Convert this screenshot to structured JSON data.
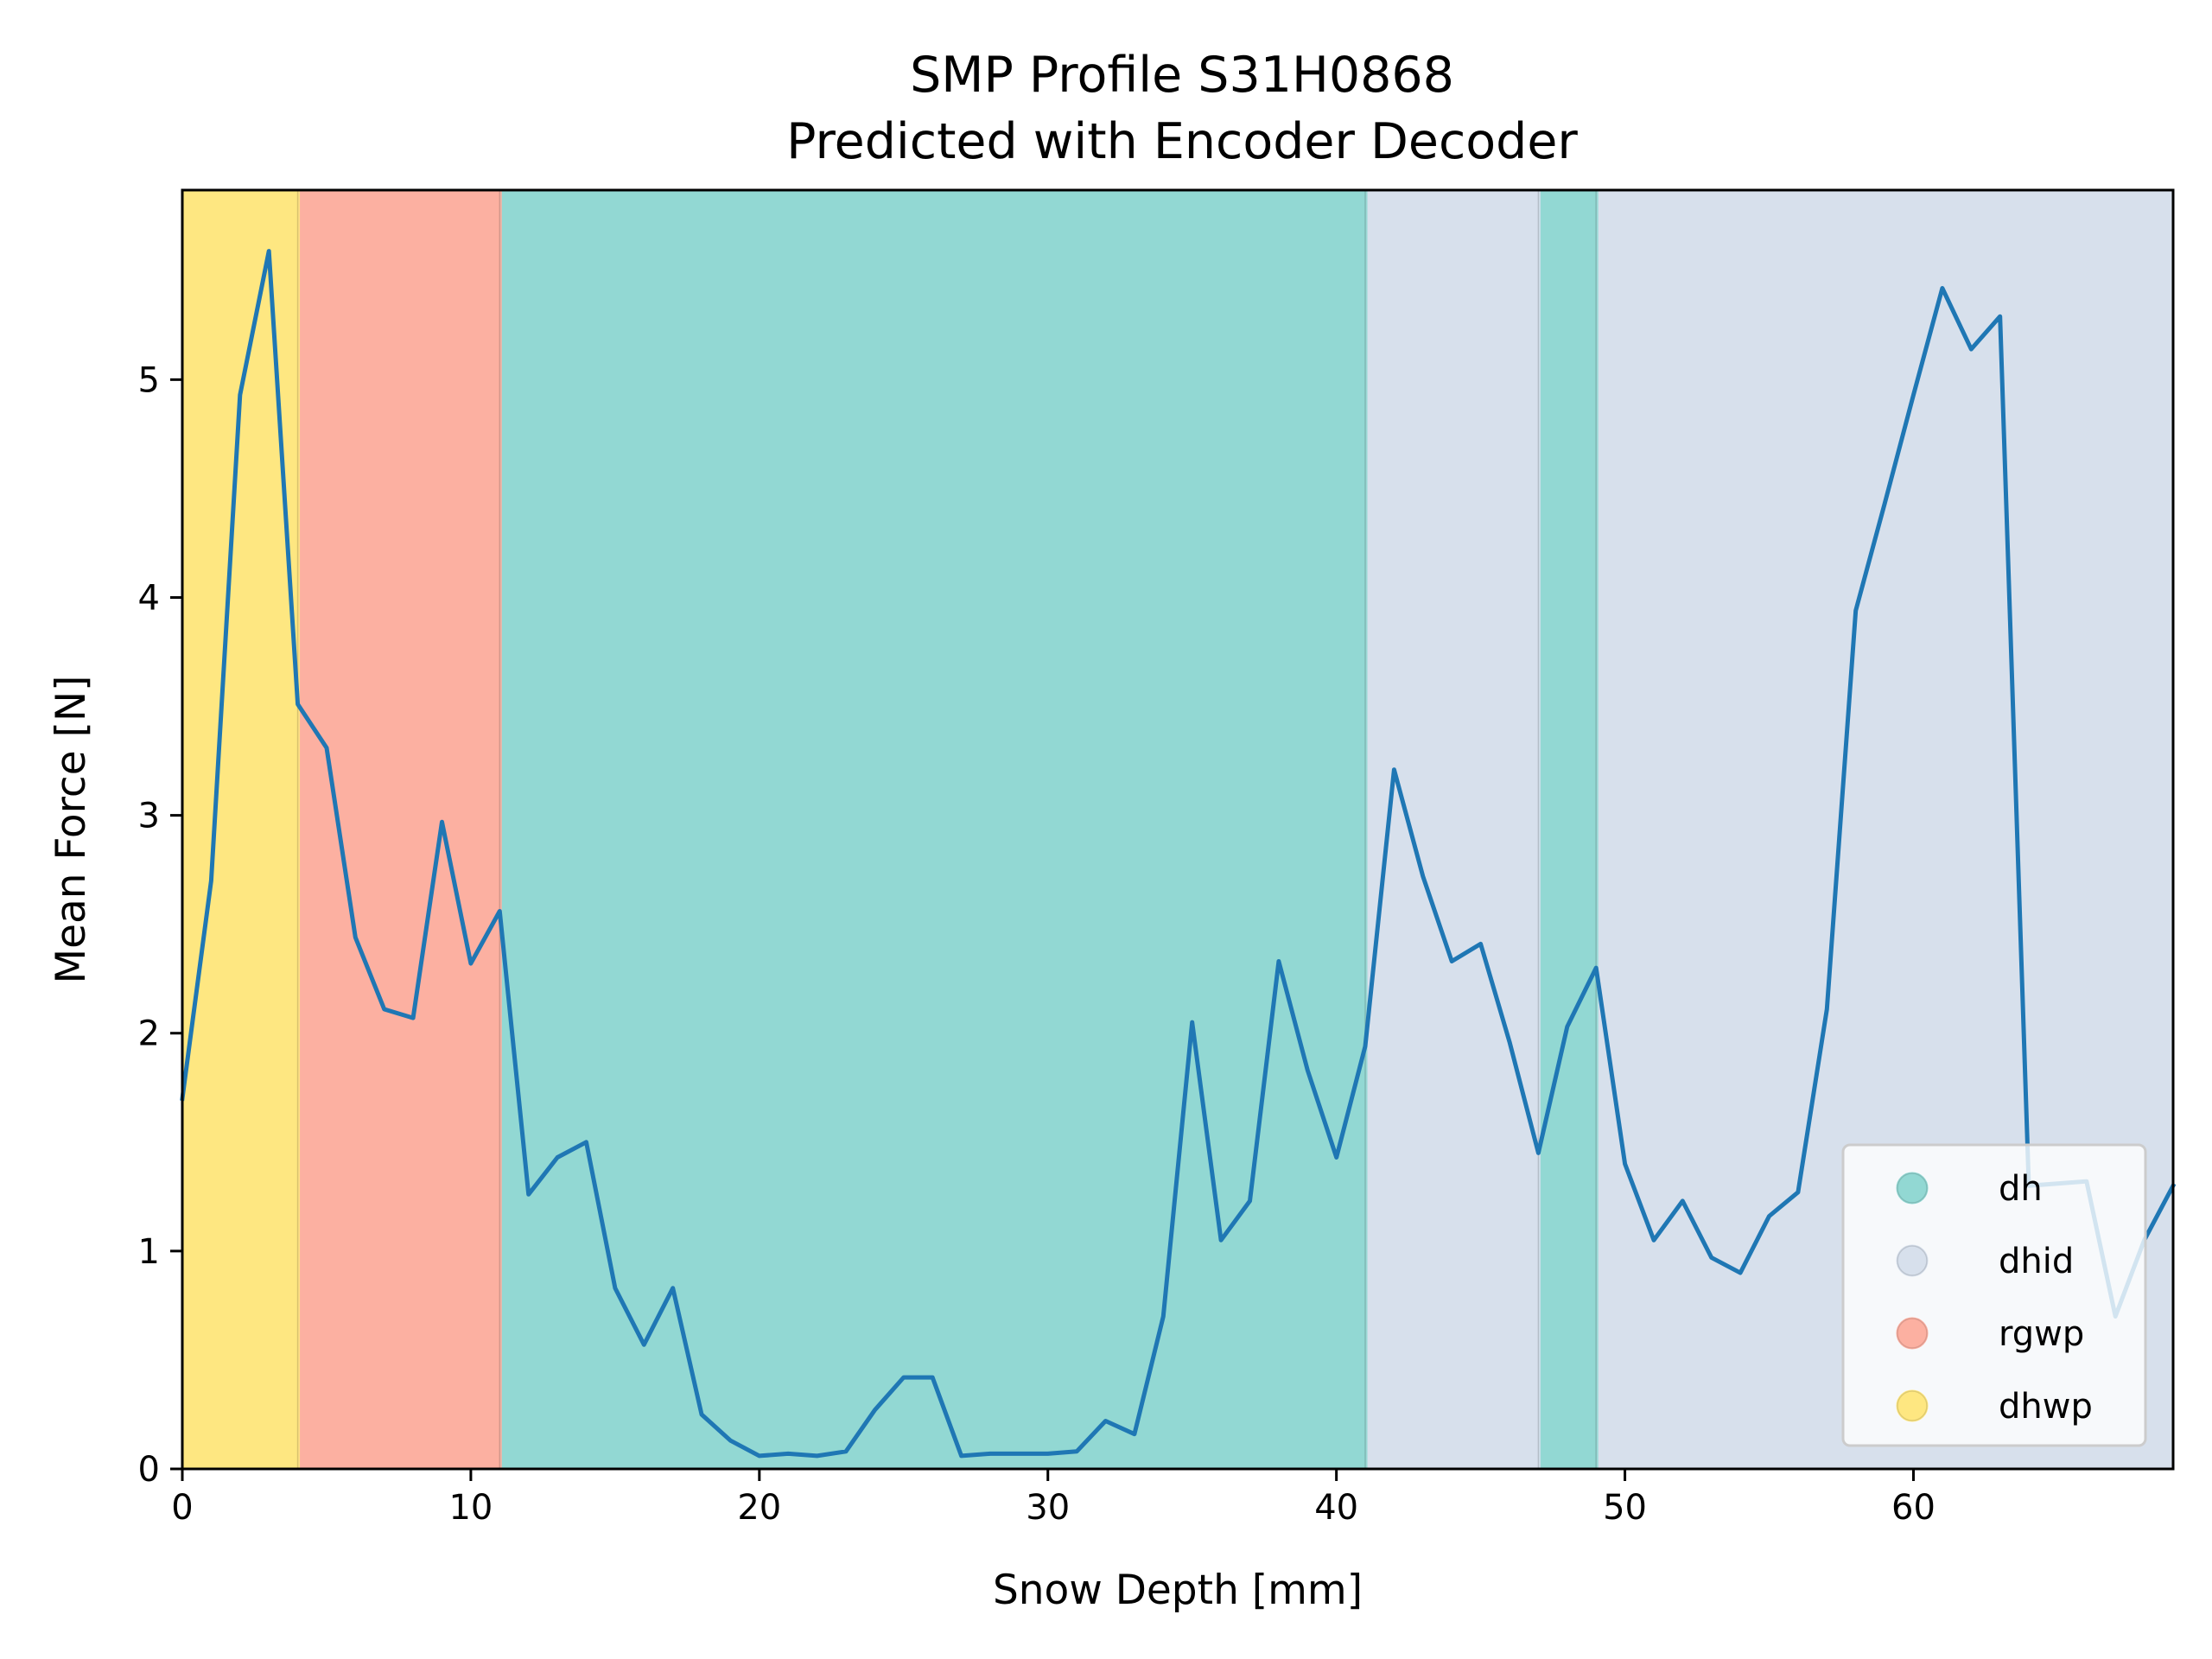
{
  "chart_data": {
    "type": "line",
    "title": "SMP Profile S31H0868",
    "subtitle": "Predicted with Encoder Decoder",
    "xlabel": "Snow Depth [mm]",
    "ylabel": "Mean Force [N]",
    "xlim": [
      0,
      69
    ],
    "ylim": [
      0,
      5.87
    ],
    "xticks": [
      0,
      10,
      20,
      30,
      40,
      50,
      60
    ],
    "yticks": [
      0,
      1,
      2,
      3,
      4,
      5
    ],
    "grid": false,
    "line_color": "#1f77b4",
    "series": [
      {
        "x": [
          0,
          1,
          2,
          3,
          4,
          5,
          6,
          7,
          8,
          9,
          10,
          11,
          12,
          13,
          14,
          15,
          16,
          17,
          18,
          19,
          20,
          21,
          22,
          23,
          24,
          25,
          26,
          27,
          28,
          29,
          30,
          31,
          32,
          33,
          34,
          35,
          36,
          37,
          38,
          39,
          40,
          41,
          42,
          43,
          44,
          45,
          46,
          47,
          48,
          49,
          50,
          51,
          52,
          53,
          54,
          55,
          56,
          57,
          58,
          59,
          60,
          61,
          62,
          63,
          64,
          65,
          66,
          67,
          68,
          69
        ],
        "y": [
          1.7,
          2.7,
          4.93,
          5.59,
          3.51,
          3.31,
          2.44,
          2.11,
          2.07,
          2.97,
          2.32,
          2.56,
          1.26,
          1.43,
          1.5,
          0.83,
          0.57,
          0.83,
          0.25,
          0.13,
          0.06,
          0.07,
          0.06,
          0.08,
          0.27,
          0.42,
          0.42,
          0.06,
          0.07,
          0.07,
          0.07,
          0.08,
          0.22,
          0.16,
          0.7,
          2.05,
          1.05,
          1.23,
          2.33,
          1.83,
          1.43,
          1.94,
          3.21,
          2.72,
          2.33,
          2.41,
          1.96,
          1.45,
          2.03,
          2.3,
          1.4,
          1.05,
          1.23,
          0.97,
          0.9,
          1.16,
          1.27,
          2.11,
          3.94,
          4.43,
          4.93,
          5.42,
          5.14,
          5.29,
          1.3,
          1.31,
          1.32,
          0.7,
          1.05,
          1.3
        ]
      }
    ],
    "regions": [
      {
        "label": "dhwp",
        "x0": 0,
        "x1": 4,
        "color": "#fee781"
      },
      {
        "label": "rgwp",
        "x0": 4,
        "x1": 11,
        "color": "#fcb0a1"
      },
      {
        "label": "dh",
        "x0": 11,
        "x1": 41,
        "color": "#92d8d3"
      },
      {
        "label": "dhid",
        "x0": 41,
        "x1": 47,
        "color": "#d7e0ec"
      },
      {
        "label": "dh",
        "x0": 47,
        "x1": 49,
        "color": "#92d8d3"
      },
      {
        "label": "dhid",
        "x0": 49,
        "x1": 69,
        "color": "#d7e0ec"
      }
    ],
    "legend": {
      "position": "lower-right",
      "entries": [
        {
          "label": "dh",
          "color": "#92d8d3"
        },
        {
          "label": "dhid",
          "color": "#d7e0ec"
        },
        {
          "label": "rgwp",
          "color": "#fcb0a1"
        },
        {
          "label": "dhwp",
          "color": "#fee781"
        }
      ]
    }
  }
}
